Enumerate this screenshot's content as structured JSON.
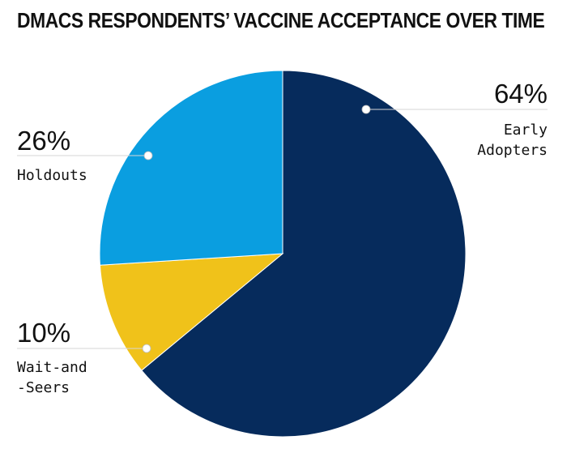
{
  "chart_data": {
    "type": "pie",
    "title": "DMACS RESPONDENTS’ VACCINE ACCEPTANCE OVER TIME",
    "slices": [
      {
        "name": "Early Adopters",
        "label_lines": [
          "Early",
          "Adopters"
        ],
        "value": 64,
        "value_label": "64%",
        "color": "#062b5c"
      },
      {
        "name": "Wait-and-Seers",
        "label_lines": [
          "Wait-and",
          "-Seers"
        ],
        "value": 10,
        "value_label": "10%",
        "color": "#f0c21a"
      },
      {
        "name": "Holdouts",
        "label_lines": [
          "Holdouts"
        ],
        "value": 26,
        "value_label": "26%",
        "color": "#0a9ee0"
      }
    ]
  }
}
